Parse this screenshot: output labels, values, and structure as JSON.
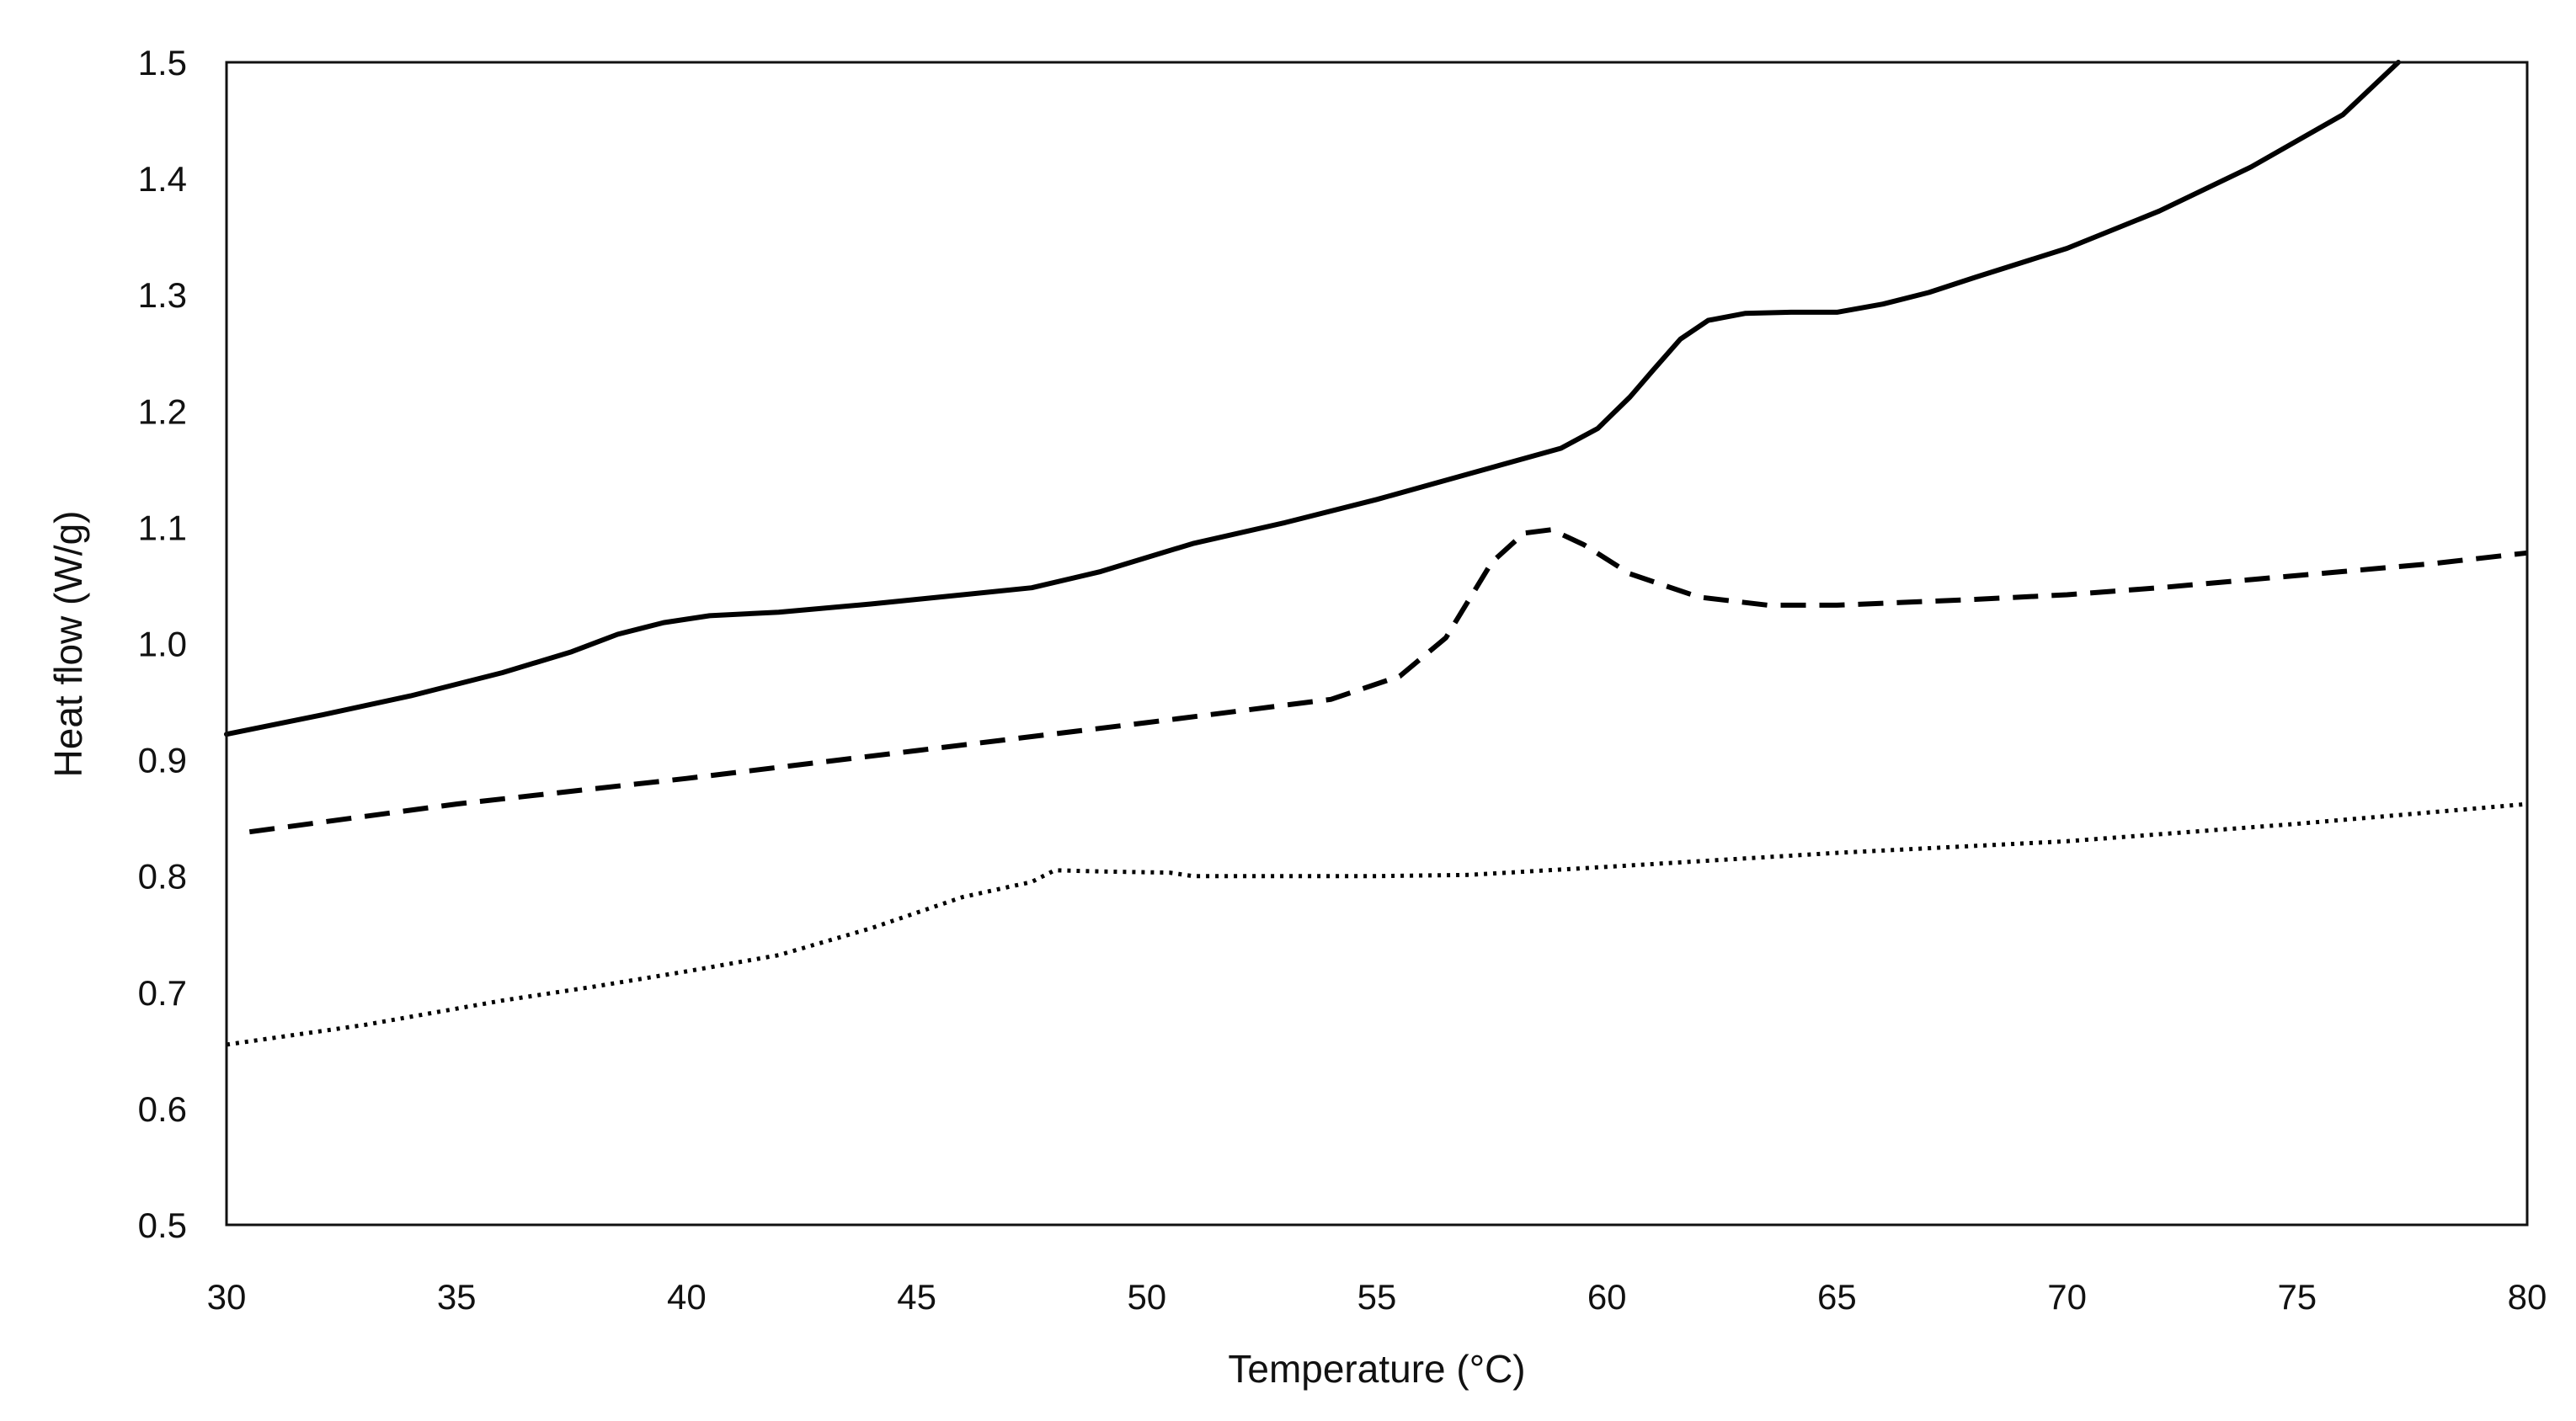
{
  "chart_data": {
    "type": "line",
    "title": "",
    "xlabel": "Temperature (°C)",
    "ylabel": "Heat flow (W/g)",
    "xlim": [
      30,
      80
    ],
    "ylim": [
      0.5,
      1.5
    ],
    "xticks": [
      30,
      35,
      40,
      45,
      50,
      55,
      60,
      65,
      70,
      75,
      80
    ],
    "yticks": [
      0.5,
      0.6,
      0.7,
      0.8,
      0.9,
      1.0,
      1.1,
      1.2,
      1.3,
      1.4,
      1.5
    ],
    "ytick_labels": [
      "0.5",
      "0.6",
      "0.7",
      "0.8",
      "0.9",
      "1.0",
      "1.1",
      "1.2",
      "1.3",
      "1.4",
      "1.5"
    ],
    "grid": false,
    "legend": "none",
    "series": [
      {
        "name": "solid",
        "style": "solid",
        "color": "#000000",
        "x": [
          30,
          32,
          34,
          36,
          37.5,
          38.5,
          39.5,
          40.5,
          42,
          44,
          46,
          47.5,
          49,
          50,
          51,
          53,
          55,
          57,
          59,
          59.8,
          60.5,
          61,
          61.6,
          62.2,
          63,
          64,
          65,
          66,
          67,
          68,
          70,
          72,
          74,
          76,
          77.2
        ],
        "y": [
          0.922,
          0.938,
          0.955,
          0.975,
          0.993,
          1.008,
          1.018,
          1.024,
          1.027,
          1.034,
          1.042,
          1.048,
          1.062,
          1.074,
          1.086,
          1.104,
          1.124,
          1.146,
          1.168,
          1.185,
          1.212,
          1.235,
          1.262,
          1.278,
          1.284,
          1.285,
          1.285,
          1.292,
          1.302,
          1.315,
          1.34,
          1.372,
          1.41,
          1.455,
          1.5
        ]
      },
      {
        "name": "dashed",
        "style": "dashed",
        "color": "#000000",
        "x": [
          30.5,
          35,
          40,
          45,
          50,
          54,
          55.5,
          56.5,
          57.5,
          58.2,
          58.8,
          59.5,
          60.5,
          62,
          63.5,
          65,
          68,
          70,
          72,
          74,
          76,
          78,
          80
        ],
        "y": [
          0.838,
          0.862,
          0.884,
          0.908,
          0.932,
          0.952,
          0.972,
          1.005,
          1.07,
          1.095,
          1.098,
          1.085,
          1.06,
          1.04,
          1.033,
          1.033,
          1.038,
          1.042,
          1.048,
          1.055,
          1.062,
          1.069,
          1.078
        ]
      },
      {
        "name": "dotted",
        "style": "dotted",
        "color": "#000000",
        "x": [
          30,
          33,
          36,
          38,
          40,
          42,
          44,
          46,
          47.5,
          48,
          49,
          50.5,
          51,
          53,
          55,
          57,
          60,
          65,
          70,
          75,
          80
        ],
        "y": [
          0.655,
          0.672,
          0.693,
          0.705,
          0.718,
          0.732,
          0.755,
          0.782,
          0.795,
          0.805,
          0.804,
          0.803,
          0.8,
          0.8,
          0.8,
          0.801,
          0.808,
          0.82,
          0.83,
          0.845,
          0.862
        ]
      }
    ]
  }
}
